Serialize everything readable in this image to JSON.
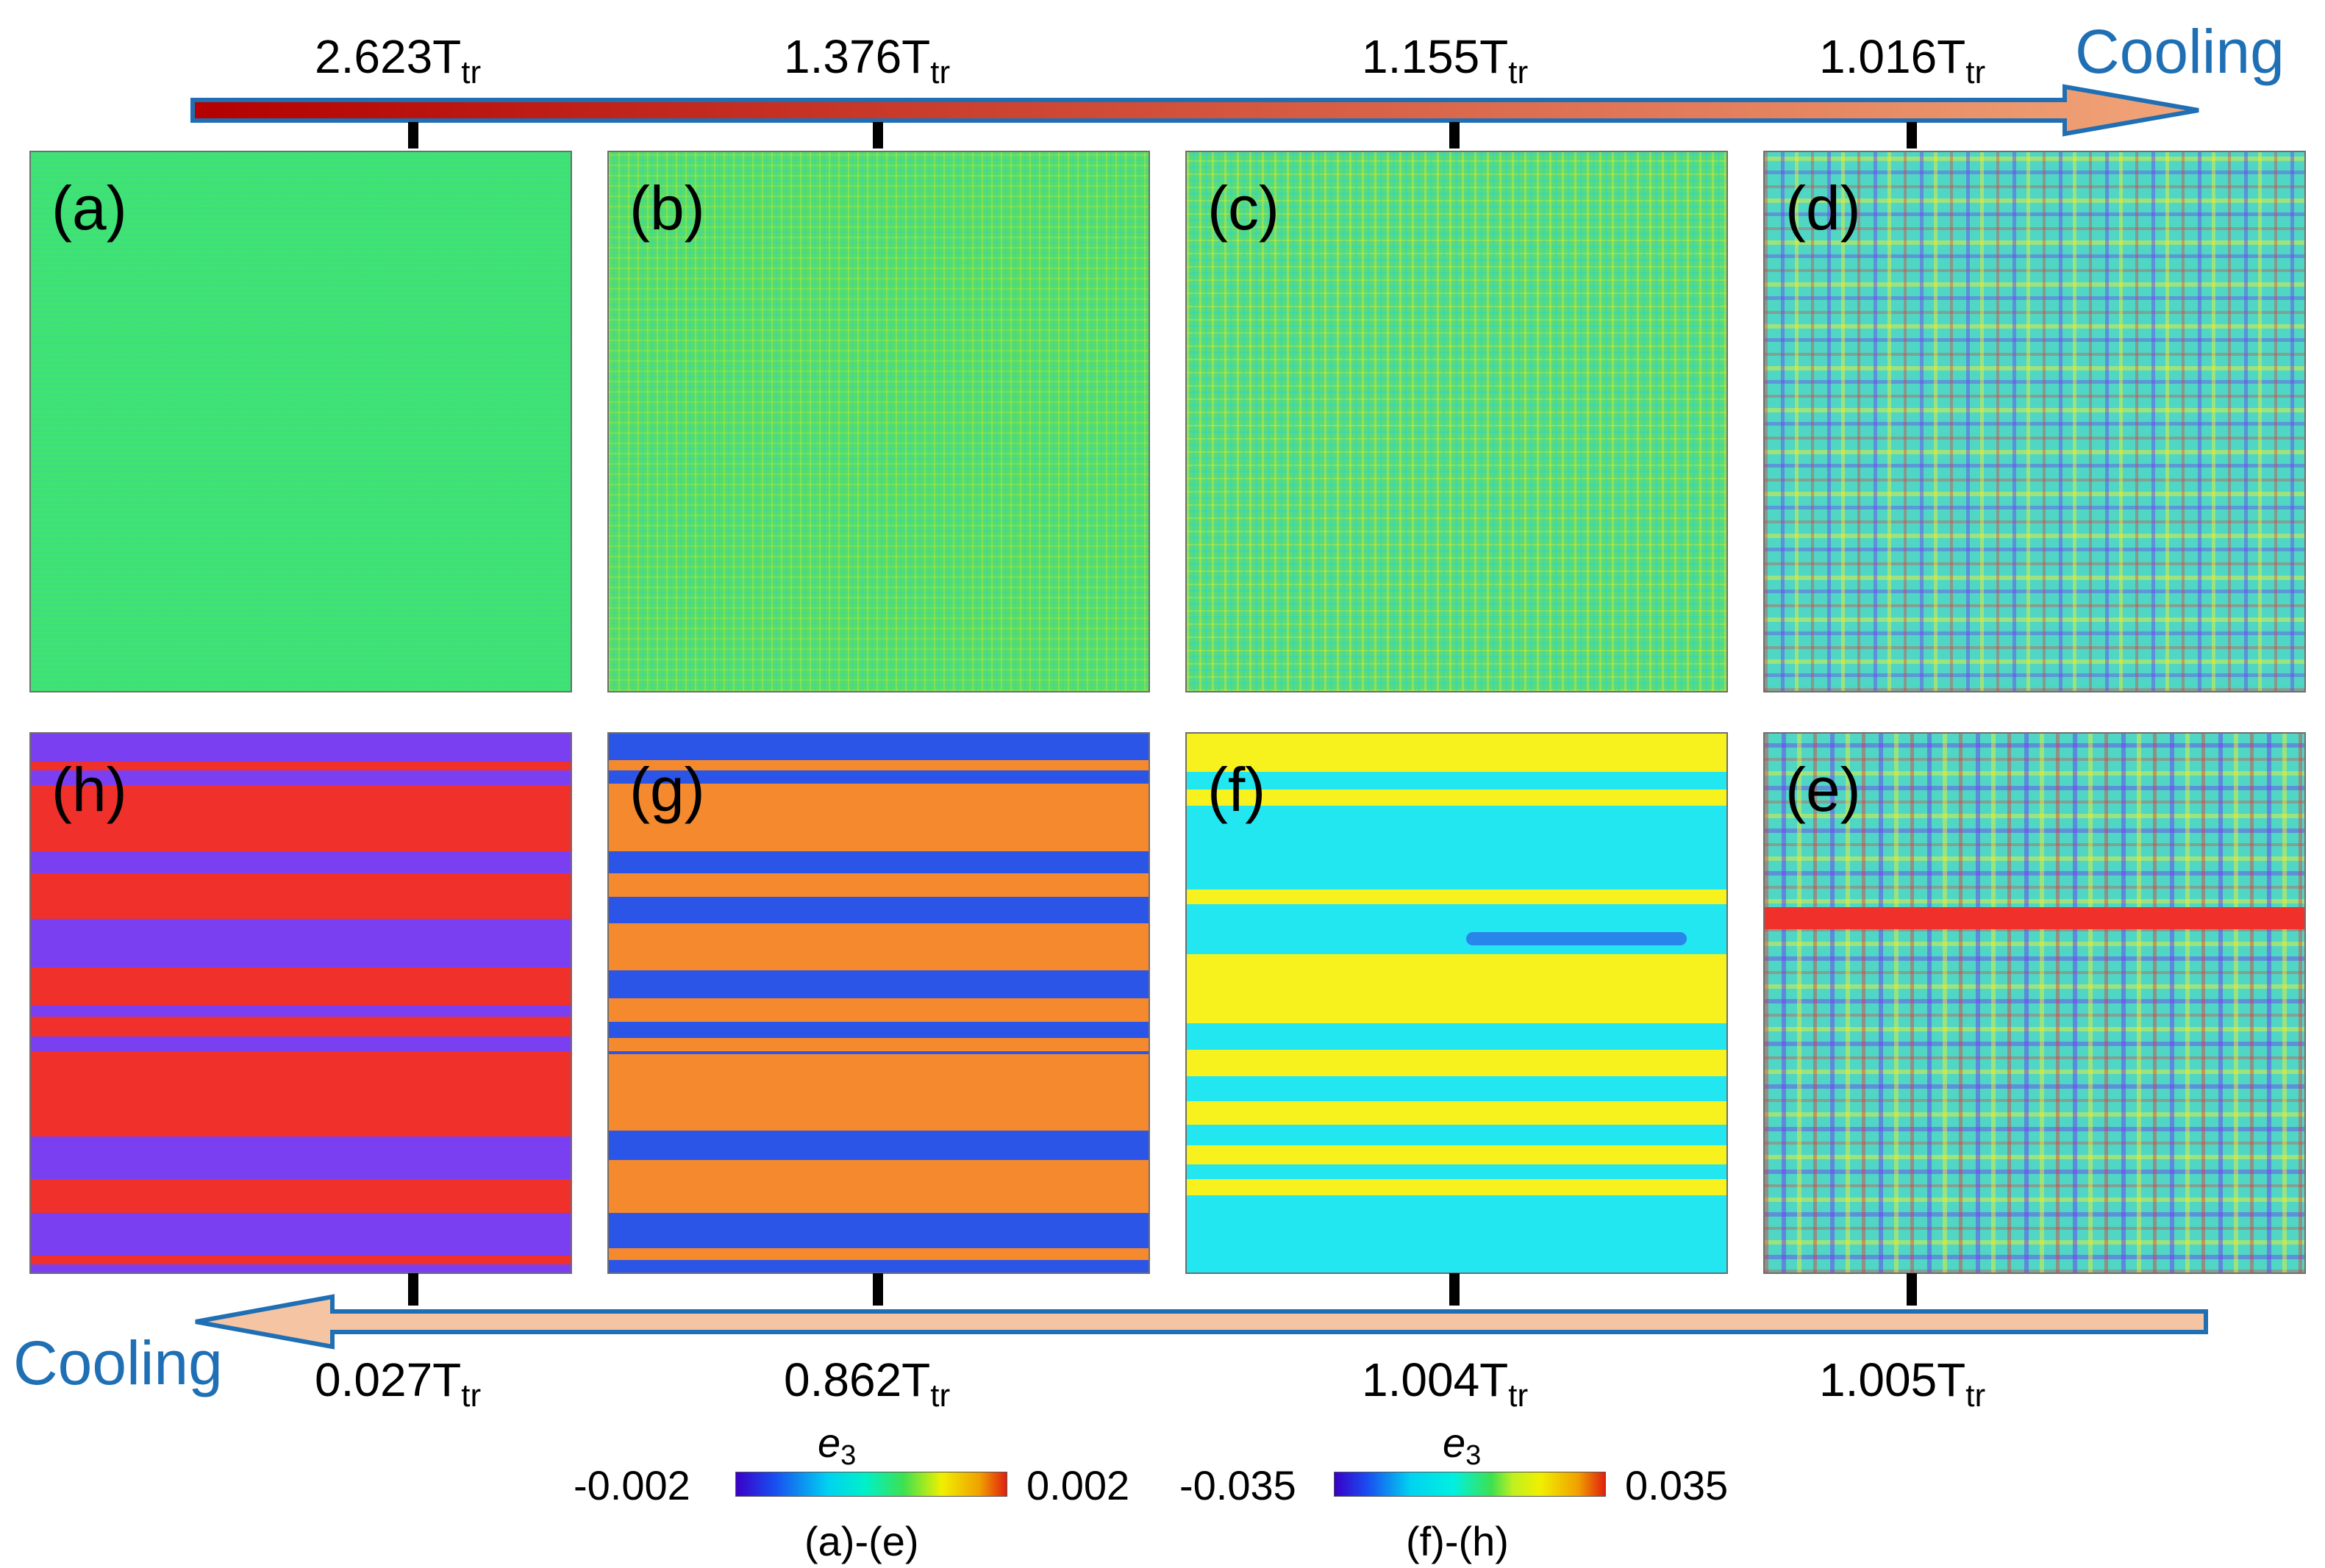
{
  "top_axis": {
    "direction_label": "Cooling",
    "temps": [
      {
        "value": "2.623T",
        "sub": "tr"
      },
      {
        "value": "1.376T",
        "sub": "tr"
      },
      {
        "value": "1.155T",
        "sub": "tr"
      },
      {
        "value": "1.016T",
        "sub": "tr"
      }
    ]
  },
  "bottom_axis": {
    "direction_label": "Cooling",
    "temps": [
      {
        "value": "0.027T",
        "sub": "tr"
      },
      {
        "value": "0.862T",
        "sub": "tr"
      },
      {
        "value": "1.004T",
        "sub": "tr"
      },
      {
        "value": "1.005T",
        "sub": "tr"
      }
    ]
  },
  "panels": {
    "a": "(a)",
    "b": "(b)",
    "c": "(c)",
    "d": "(d)",
    "e": "(e)",
    "f": "(f)",
    "g": "(g)",
    "h": "(h)"
  },
  "colorbars": [
    {
      "symbol": "e",
      "sub": "3",
      "min": "-0.002",
      "max": "0.002",
      "range_label": "(a)-(e)"
    },
    {
      "symbol": "e",
      "sub": "3",
      "min": "-0.035",
      "max": "0.035",
      "range_label": "(f)-(h)"
    }
  ],
  "colors": {
    "top_arrow_start": "#b30000",
    "top_arrow_end": "#f2a679",
    "bottom_arrow": "#f5c4a3",
    "arrow_outline": "#1f6fb5",
    "cooling_text": "#1f6fb5",
    "panel_green": "#3ee07a",
    "cyan": "#22e6f0",
    "yellow": "#f7f21e",
    "red": "#f0302a",
    "purple": "#7b3ff2",
    "blue": "#2a55e6",
    "orange": "#f5892e"
  }
}
